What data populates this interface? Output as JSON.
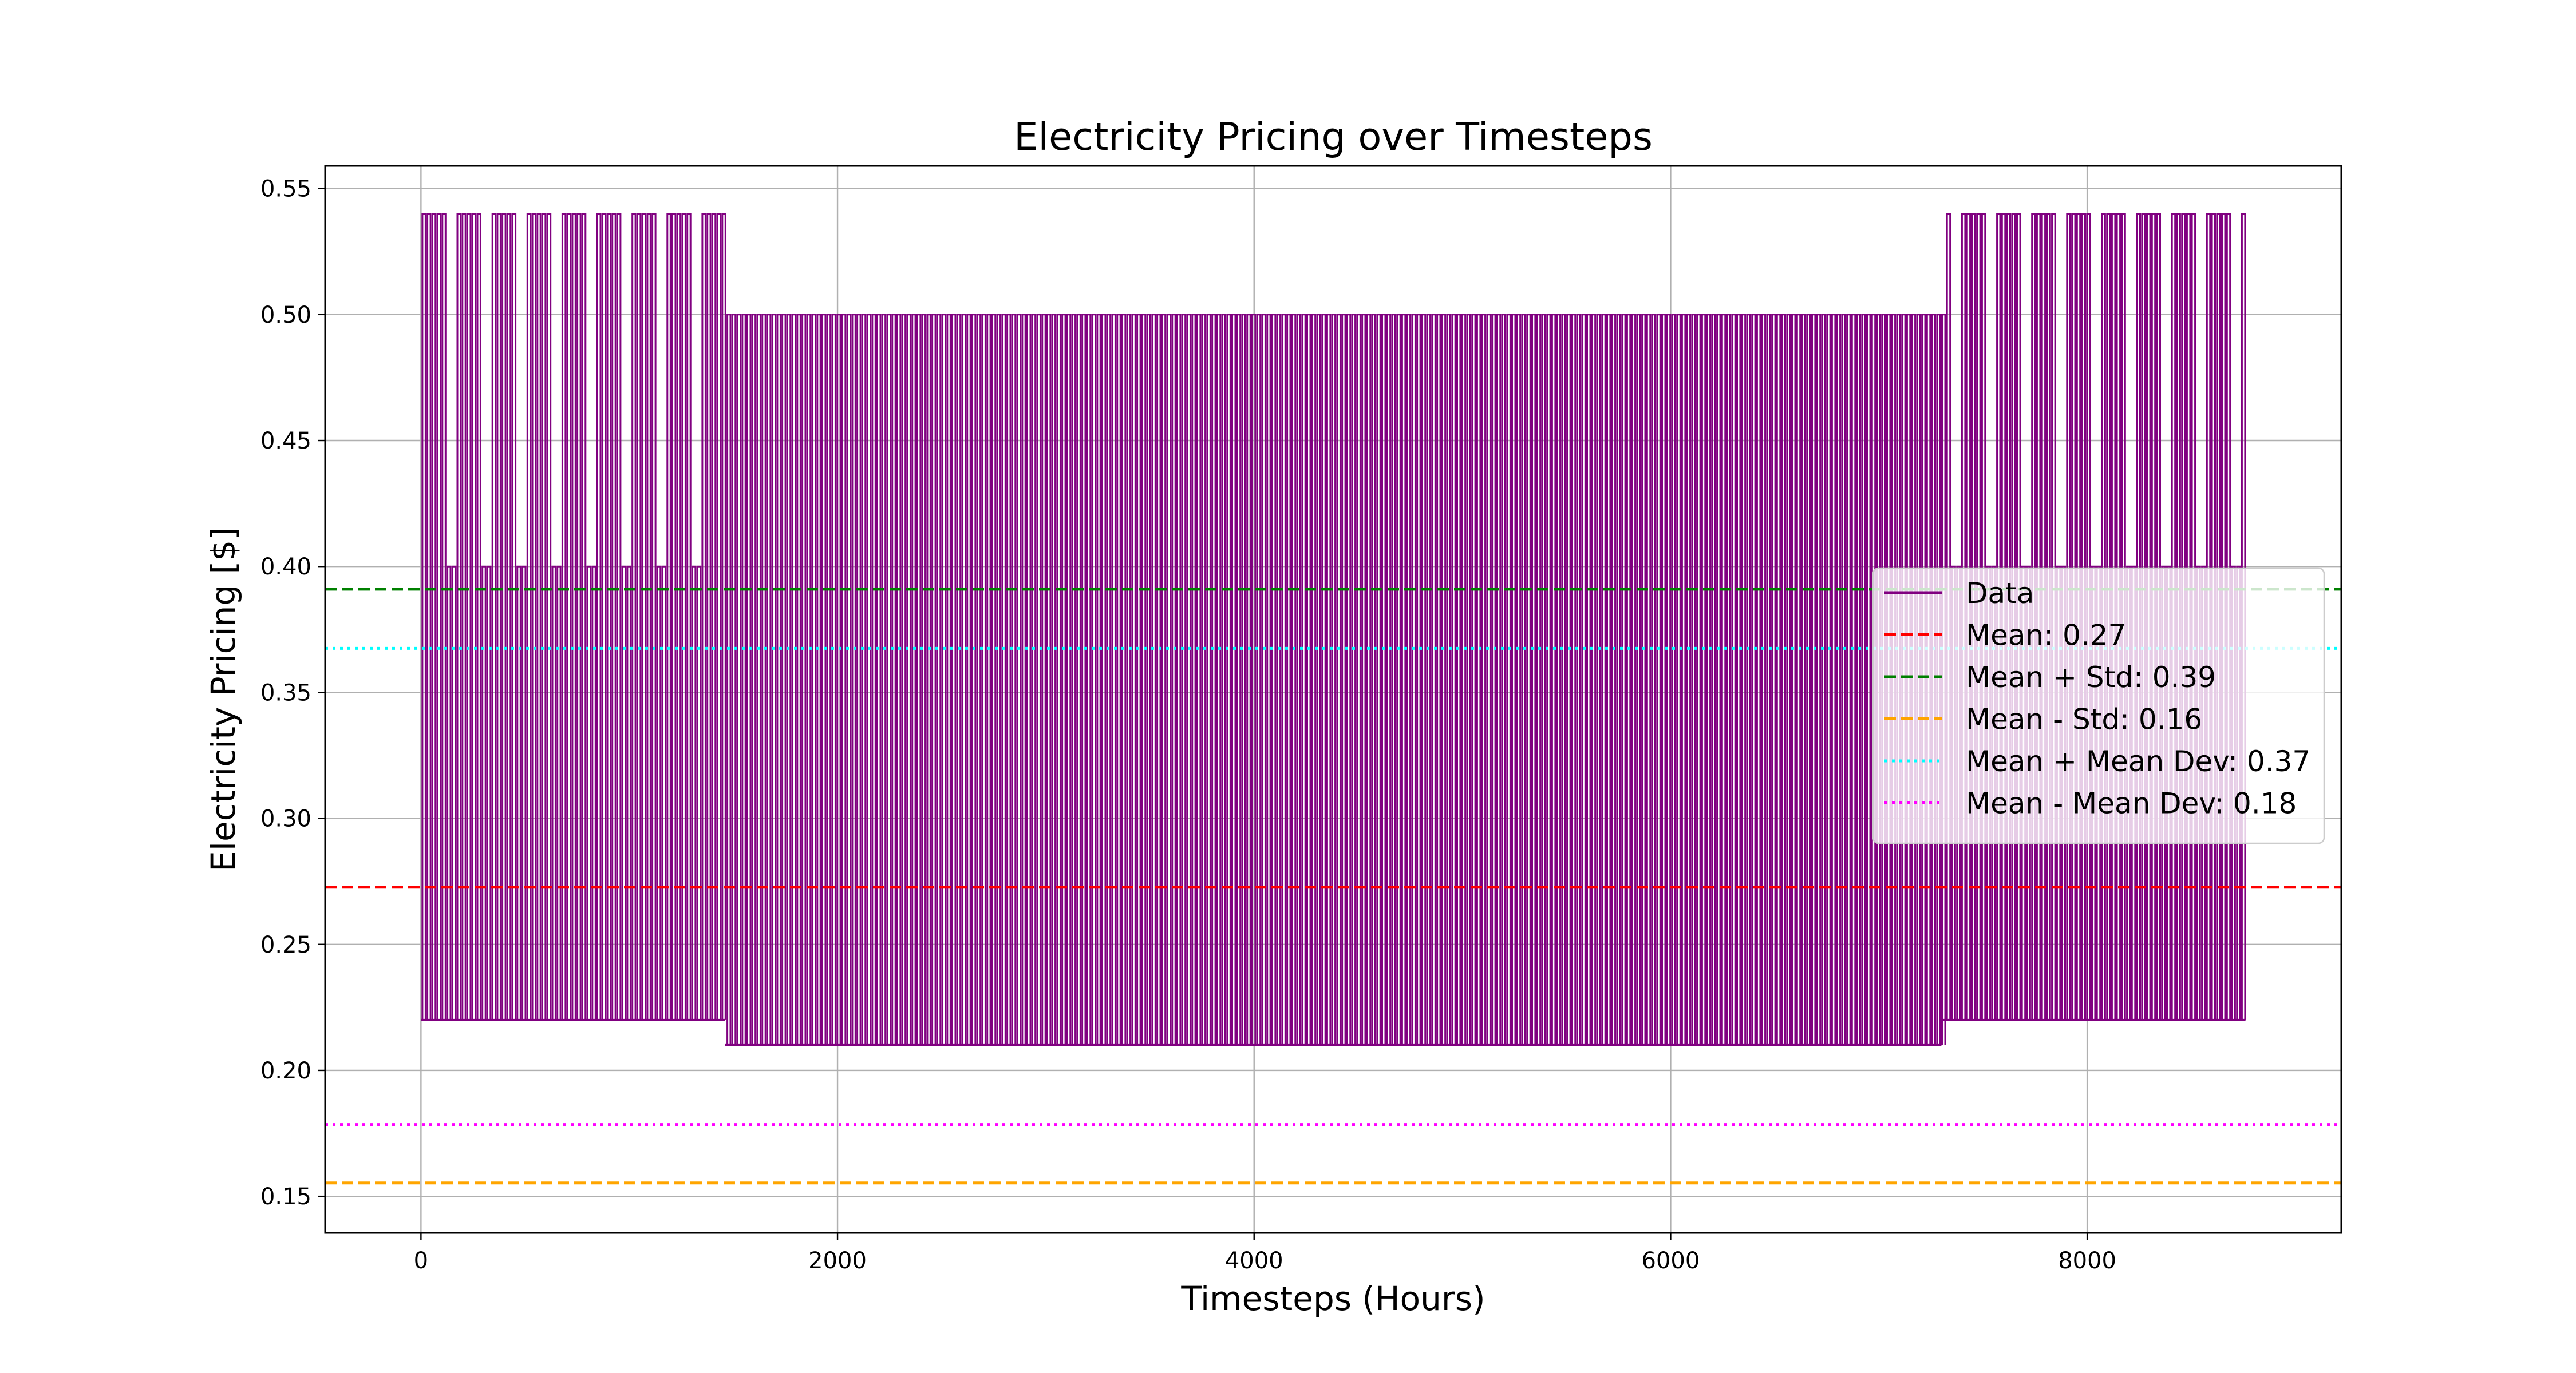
{
  "chart_data": {
    "type": "line",
    "title": "Electricity Pricing over Timesteps",
    "xlabel": "Timesteps (Hours)",
    "ylabel": "Electricity Pricing [$]",
    "xlim": [
      -460,
      9220
    ],
    "ylim": [
      0.1355,
      0.559
    ],
    "xticks": [
      0,
      2000,
      4000,
      6000,
      8000
    ],
    "yticks": [
      0.15,
      0.2,
      0.25,
      0.3,
      0.35,
      0.4,
      0.45,
      0.5,
      0.55
    ],
    "grid": true,
    "legend_position": "right",
    "series": [
      {
        "name": "Data",
        "color": "#800080",
        "pattern": {
          "period_hours": 24,
          "length_hours": 8760,
          "segments": [
            {
              "start": 0,
              "end": 1460,
              "min": 0.22,
              "max_weekday": 0.54,
              "max_weekend": 0.4
            },
            {
              "start": 1460,
              "end": 7300,
              "min": 0.21,
              "max_weekday": 0.5,
              "max_weekend": 0.5
            },
            {
              "start": 7300,
              "end": 8760,
              "min": 0.22,
              "max_weekday": 0.54,
              "max_weekend": 0.4
            }
          ]
        }
      }
    ],
    "reference_lines": [
      {
        "name": "Mean: 0.27",
        "value": 0.2727,
        "color": "#ff0000",
        "style": "dashed"
      },
      {
        "name": "Mean + Std: 0.39",
        "value": 0.391,
        "color": "#008000",
        "style": "dashed"
      },
      {
        "name": "Mean - Std: 0.16",
        "value": 0.1553,
        "color": "#ffa500",
        "style": "dashed"
      },
      {
        "name": "Mean + Mean Dev: 0.37",
        "value": 0.3675,
        "color": "#00ffff",
        "style": "dotted"
      },
      {
        "name": "Mean - Mean Dev: 0.18",
        "value": 0.1785,
        "color": "#ff00ff",
        "style": "dotted"
      }
    ]
  }
}
